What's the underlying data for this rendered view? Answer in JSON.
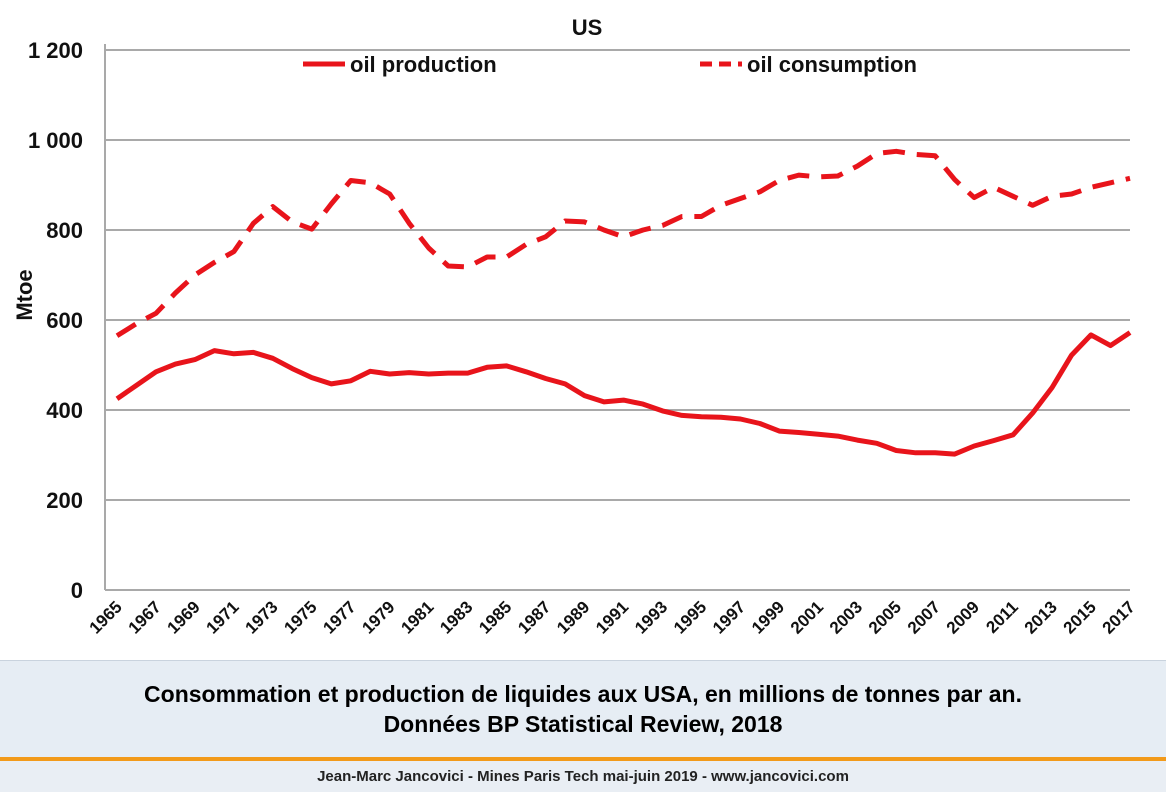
{
  "chart_data": {
    "type": "line",
    "title": "US",
    "ylabel": "Mtoe",
    "xlabel": "",
    "ylim": [
      0,
      1200
    ],
    "yticks": [
      0,
      200,
      400,
      600,
      800,
      1000,
      1200
    ],
    "ytick_labels": [
      "0",
      "200",
      "400",
      "600",
      "800",
      "1 000",
      "1 200"
    ],
    "xtick_labels": [
      "1965",
      "1967",
      "1969",
      "1971",
      "1973",
      "1975",
      "1977",
      "1979",
      "1981",
      "1983",
      "1985",
      "1987",
      "1989",
      "1991",
      "1993",
      "1995",
      "1997",
      "1999",
      "2001",
      "2003",
      "2005",
      "2007",
      "2009",
      "2011",
      "2013",
      "2015",
      "2017"
    ],
    "grid": "horizontal",
    "legend_position": "top",
    "x": [
      1965,
      1966,
      1967,
      1968,
      1969,
      1970,
      1971,
      1972,
      1973,
      1974,
      1975,
      1976,
      1977,
      1978,
      1979,
      1980,
      1981,
      1982,
      1983,
      1984,
      1985,
      1986,
      1987,
      1988,
      1989,
      1990,
      1991,
      1992,
      1993,
      1994,
      1995,
      1996,
      1997,
      1998,
      1999,
      2000,
      2001,
      2002,
      2003,
      2004,
      2005,
      2006,
      2007,
      2008,
      2009,
      2010,
      2011,
      2012,
      2013,
      2014,
      2015,
      2016,
      2017
    ],
    "series": [
      {
        "name": "oil production",
        "style": "solid",
        "color": "#e8141b",
        "values": [
          425,
          455,
          485,
          502,
          512,
          532,
          525,
          528,
          515,
          492,
          472,
          458,
          465,
          486,
          480,
          483,
          480,
          482,
          482,
          495,
          498,
          485,
          470,
          458,
          432,
          418,
          422,
          413,
          398,
          388,
          385,
          384,
          380,
          370,
          353,
          350,
          346,
          342,
          333,
          326,
          310,
          305,
          305,
          302,
          320,
          332,
          345,
          393,
          450,
          522,
          567,
          543,
          572
        ]
      },
      {
        "name": "oil consumption",
        "style": "dashed",
        "color": "#e8141b",
        "values": [
          565,
          592,
          615,
          660,
          700,
          728,
          752,
          815,
          852,
          818,
          802,
          858,
          910,
          905,
          880,
          815,
          760,
          720,
          718,
          740,
          740,
          768,
          785,
          820,
          818,
          800,
          785,
          800,
          810,
          830,
          830,
          855,
          870,
          885,
          910,
          922,
          918,
          920,
          942,
          970,
          975,
          968,
          965,
          912,
          872,
          895,
          875,
          855,
          875,
          880,
          895,
          905,
          915
        ]
      }
    ]
  },
  "caption": {
    "line1": "Consommation et production de liquides aux USA, en millions de tonnes par an.",
    "line2": "Données BP Statistical Review, 2018"
  },
  "footer": {
    "text": "Jean-Marc Jancovici - Mines Paris Tech mai-juin 2019 - www.jancovici.com"
  },
  "colors": {
    "series": "#e8141b",
    "grid": "#a9a9a9",
    "caption_background": "#e6edf4",
    "accent_rule": "#f29a1a"
  }
}
